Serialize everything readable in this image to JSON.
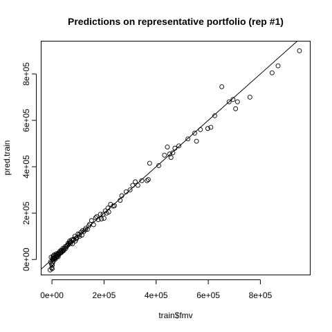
{
  "chart_data": {
    "type": "scatter",
    "title": "Predictions on representative portfolio (rep #1)",
    "xlabel": "train$fmv",
    "ylabel": "pred.train",
    "xlim": [
      -40000,
      990000
    ],
    "ylim": [
      -65000,
      940000
    ],
    "xticks": [
      0,
      200000,
      400000,
      600000,
      800000
    ],
    "yticks": [
      0,
      200000,
      400000,
      600000,
      800000
    ],
    "xtick_labels": [
      "0e+00",
      "2e+05",
      "4e+05",
      "6e+05",
      "8e+05"
    ],
    "ytick_labels": [
      "0e+00",
      "2e+05",
      "4e+05",
      "6e+05",
      "8e+05"
    ],
    "grid": false,
    "reference_line": {
      "intercept": 0,
      "slope": 1
    },
    "points": {
      "x": [
        950000,
        868000,
        845000,
        760000,
        712000,
        705000,
        695000,
        680000,
        652000,
        625000,
        610000,
        598000,
        570000,
        555000,
        548000,
        522000,
        487000,
        472000,
        464000,
        457000,
        452000,
        443000,
        432000,
        410000,
        375000,
        370000,
        365000,
        345000,
        330000,
        310000,
        300000,
        285000,
        268000,
        262000,
        235000,
        225000,
        218000,
        210000,
        205000,
        196000,
        190000,
        178000,
        172000,
        160000,
        152000,
        142000,
        136000,
        130000,
        122000,
        118000,
        112000,
        106000,
        100000,
        96000,
        92000,
        88000,
        84000,
        80000,
        76000,
        72000,
        68000,
        64000,
        60000,
        56000,
        52000,
        48000,
        45000,
        42000,
        38000,
        35000,
        32000,
        30000,
        27000,
        25000,
        22000,
        20000,
        18000,
        16000,
        14000,
        12000,
        10000,
        8000,
        7000,
        6000,
        5000,
        4000,
        3000,
        2000,
        1500,
        1000,
        -500,
        -1500,
        -3000,
        -5000,
        -7000,
        5000,
        11000,
        17000,
        24000,
        33000,
        41000,
        53000,
        62000,
        71000,
        83000,
        94000,
        105000,
        115000,
        128000,
        145000,
        168000,
        186000,
        200000,
        215000,
        240000,
        320000,
        9000,
        13000,
        19000,
        26000,
        36000,
        46000,
        58000,
        67000,
        79000,
        90000
      ],
      "y": [
        900000,
        835000,
        805000,
        700000,
        680000,
        650000,
        690000,
        680000,
        745000,
        620000,
        570000,
        565000,
        560000,
        510000,
        545000,
        520000,
        490000,
        480000,
        460000,
        440000,
        455000,
        485000,
        450000,
        405000,
        415000,
        345000,
        340000,
        340000,
        320000,
        320000,
        300000,
        292000,
        275000,
        255000,
        230000,
        238000,
        205000,
        200000,
        210000,
        195000,
        175000,
        172000,
        185000,
        150000,
        168000,
        145000,
        130000,
        135000,
        120000,
        125000,
        118000,
        100000,
        110000,
        95000,
        90000,
        100000,
        88000,
        82000,
        85000,
        70000,
        80000,
        65000,
        62000,
        55000,
        57000,
        50000,
        42000,
        48000,
        38000,
        40000,
        30000,
        35000,
        25000,
        28000,
        22000,
        15000,
        20000,
        12000,
        18000,
        10000,
        8000,
        5000,
        15000,
        2000,
        -8000,
        0,
        6000,
        -15000,
        -25000,
        -40000,
        -35000,
        -20000,
        10000,
        -10000,
        -45000,
        15000,
        5000,
        25000,
        12000,
        28000,
        35000,
        48000,
        70000,
        75000,
        85000,
        90000,
        108000,
        105000,
        128000,
        152000,
        180000,
        195000,
        178000,
        222000,
        232000,
        335000,
        20000,
        2000,
        12000,
        20000,
        30000,
        40000,
        60000,
        72000,
        68000,
        80000
      ]
    }
  }
}
